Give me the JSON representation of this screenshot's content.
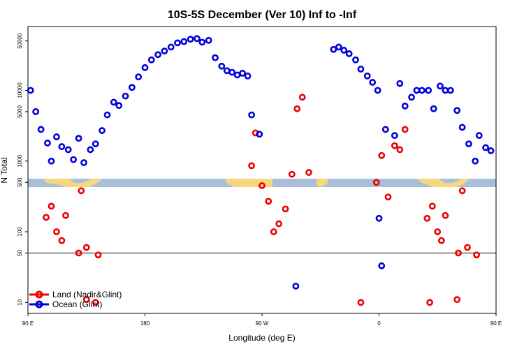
{
  "chart_data": {
    "type": "scatter",
    "title": "10S-5S December (Ver 10)   Inf to -Inf",
    "xlabel": "Longitude (deg E)",
    "ylabel": "N Total",
    "yscale": "log",
    "xlim": [
      90,
      450
    ],
    "ylim": [
      7,
      80000
    ],
    "x_ticks": [
      90,
      180,
      270,
      360,
      450
    ],
    "x_tick_labels": [
      "90 E",
      "180",
      "90 W",
      "0",
      "90 E"
    ],
    "y_ticks": [
      10,
      50,
      100,
      500,
      1000,
      5000,
      10000,
      50000
    ],
    "y_tick_labels": [
      "10",
      "50",
      "100",
      "500",
      "1000",
      "5000",
      "10000",
      "50000"
    ],
    "reference_line_y": 50,
    "map_strip": {
      "colors": {
        "ocean": "#a9bfd9",
        "land": "#f6d67e"
      }
    },
    "legend": [
      {
        "label": "Land (Nadir&Glint)",
        "color": "#ee0000"
      },
      {
        "label": "Ocean (Glint)",
        "color": "#0000dd"
      }
    ],
    "series": [
      {
        "name": "Land (Nadir&Glint)",
        "color": "#ee0000",
        "points": [
          [
            104,
            160
          ],
          [
            108,
            230
          ],
          [
            112,
            100
          ],
          [
            116,
            75
          ],
          [
            119,
            170
          ],
          [
            129,
            50
          ],
          [
            131,
            380
          ],
          [
            135,
            60
          ],
          [
            144,
            47
          ],
          [
            262,
            860
          ],
          [
            265,
            2500
          ],
          [
            270,
            450
          ],
          [
            275,
            270
          ],
          [
            279,
            100
          ],
          [
            283,
            130
          ],
          [
            288,
            210
          ],
          [
            293,
            650
          ],
          [
            297,
            5500
          ],
          [
            301,
            8000
          ],
          [
            306,
            690
          ],
          [
            346,
            10
          ],
          [
            358,
            500
          ],
          [
            362,
            1200
          ],
          [
            367,
            310
          ],
          [
            372,
            1650
          ],
          [
            376,
            1450
          ],
          [
            380,
            2800
          ],
          [
            135,
            11
          ],
          [
            142,
            10
          ],
          [
            397,
            155
          ],
          [
            401,
            230
          ],
          [
            405,
            100
          ],
          [
            408,
            75
          ],
          [
            411,
            170
          ],
          [
            421,
            50
          ],
          [
            424,
            380
          ],
          [
            428,
            60
          ],
          [
            435,
            47
          ],
          [
            399,
            10
          ],
          [
            420,
            11
          ]
        ]
      },
      {
        "name": "Ocean (Glint)",
        "color": "#0000dd",
        "points": [
          [
            92,
            10000
          ],
          [
            96,
            5000
          ],
          [
            100,
            2800
          ],
          [
            105,
            1800
          ],
          [
            108,
            1000
          ],
          [
            112,
            2200
          ],
          [
            116,
            1600
          ],
          [
            121,
            1450
          ],
          [
            125,
            1050
          ],
          [
            129,
            2100
          ],
          [
            133,
            950
          ],
          [
            138,
            1450
          ],
          [
            142,
            1750
          ],
          [
            147,
            2700
          ],
          [
            151,
            4500
          ],
          [
            156,
            6800
          ],
          [
            160,
            6100
          ],
          [
            165,
            8300
          ],
          [
            170,
            11000
          ],
          [
            175,
            15500
          ],
          [
            180,
            21000
          ],
          [
            185,
            27000
          ],
          [
            190,
            32000
          ],
          [
            195,
            36000
          ],
          [
            200,
            41000
          ],
          [
            205,
            47000
          ],
          [
            210,
            49000
          ],
          [
            215,
            53000
          ],
          [
            220,
            54000
          ],
          [
            224,
            48000
          ],
          [
            229,
            51000
          ],
          [
            234,
            29000
          ],
          [
            239,
            22000
          ],
          [
            243,
            19000
          ],
          [
            247,
            18000
          ],
          [
            251,
            16500
          ],
          [
            255,
            17500
          ],
          [
            259,
            16000
          ],
          [
            262,
            4500
          ],
          [
            268,
            2400
          ],
          [
            296,
            17
          ],
          [
            325,
            38000
          ],
          [
            329,
            41000
          ],
          [
            333,
            37000
          ],
          [
            337,
            33000
          ],
          [
            342,
            27000
          ],
          [
            346,
            20000
          ],
          [
            351,
            16000
          ],
          [
            355,
            13000
          ],
          [
            359,
            10000
          ],
          [
            365,
            2800
          ],
          [
            372,
            2300
          ],
          [
            376,
            12500
          ],
          [
            380,
            6000
          ],
          [
            385,
            8000
          ],
          [
            389,
            10000
          ],
          [
            393,
            10000
          ],
          [
            398,
            10000
          ],
          [
            402,
            5500
          ],
          [
            407,
            11500
          ],
          [
            411,
            10000
          ],
          [
            415,
            10000
          ],
          [
            420,
            5200
          ],
          [
            424,
            3000
          ],
          [
            429,
            1750
          ],
          [
            434,
            1000
          ],
          [
            437,
            2300
          ],
          [
            442,
            1550
          ],
          [
            446,
            1400
          ],
          [
            362,
            33
          ],
          [
            360,
            155
          ]
        ]
      }
    ]
  }
}
